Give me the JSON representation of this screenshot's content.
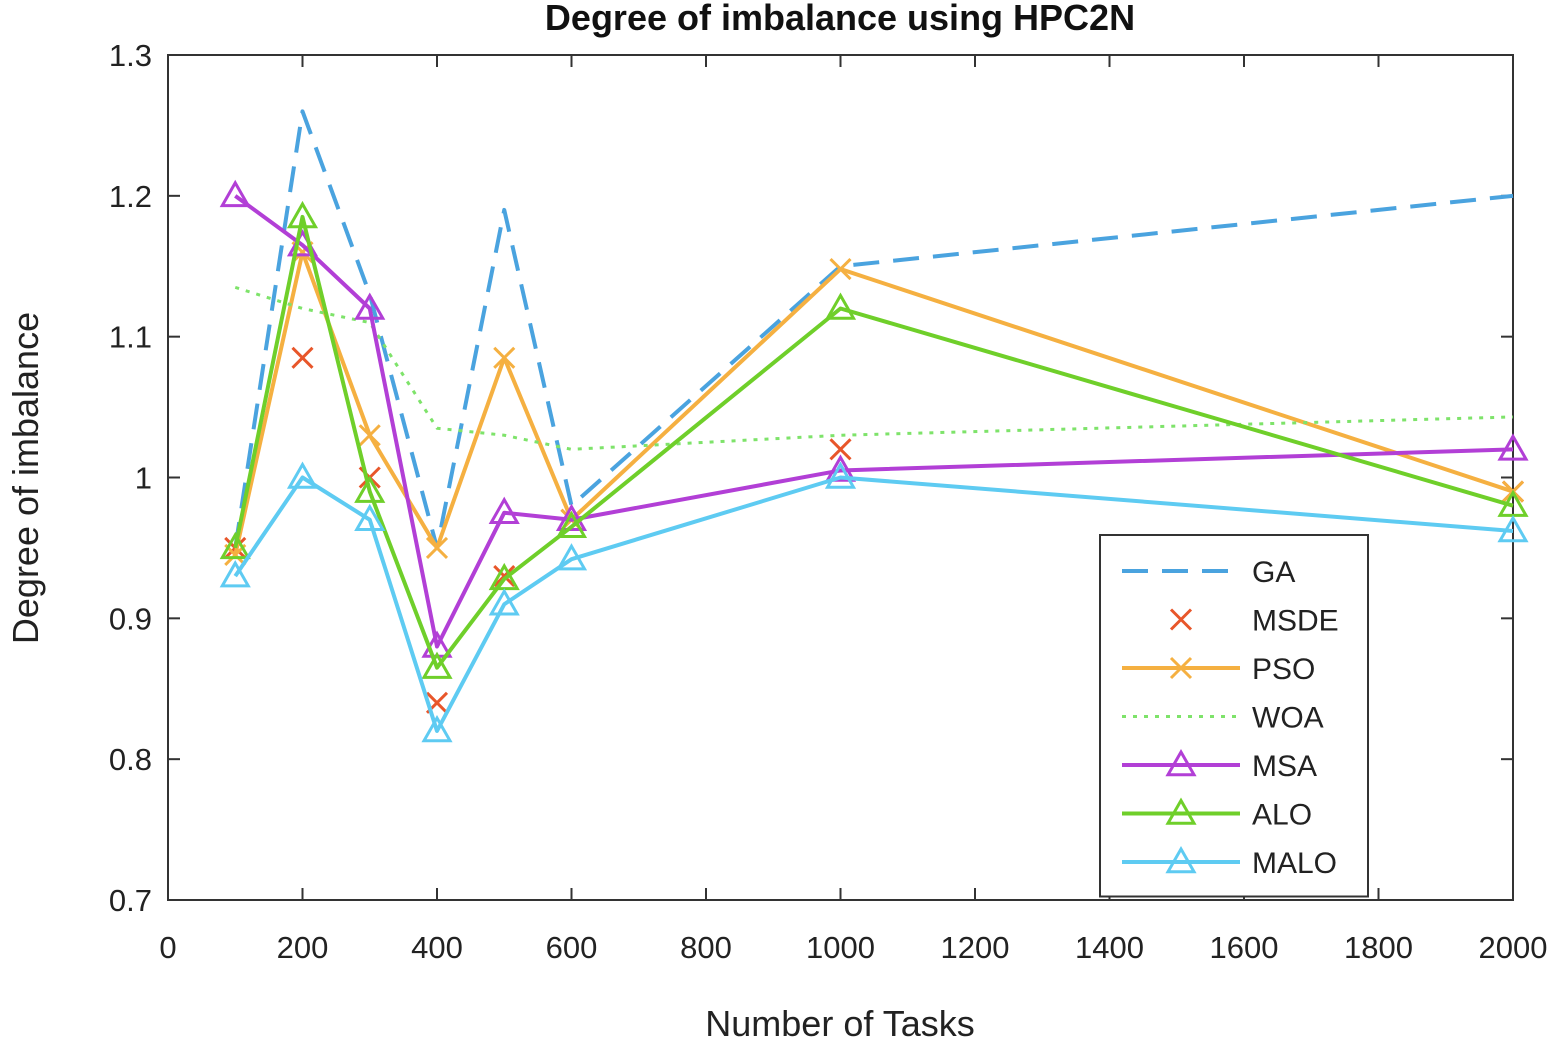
{
  "chart_data": {
    "type": "line",
    "title": "Degree of imbalance using HPC2N",
    "xlabel": "Number of Tasks",
    "ylabel": "Degree of imbalance",
    "xlim": [
      0,
      2000
    ],
    "ylim": [
      0.7,
      1.3
    ],
    "xticks": [
      "0",
      "200",
      "400",
      "600",
      "800",
      "1000",
      "1200",
      "1400",
      "1600",
      "1800",
      "2000"
    ],
    "yticks": [
      "0.7",
      "0.8",
      "0.9",
      "1",
      "1.1",
      "1.2",
      "1.3"
    ],
    "xtick_values": [
      0,
      200,
      400,
      600,
      800,
      1000,
      1200,
      1400,
      1600,
      1800,
      2000
    ],
    "ytick_values": [
      0.7,
      0.8,
      0.9,
      1.0,
      1.1,
      1.2,
      1.3
    ],
    "x": [
      100,
      200,
      300,
      400,
      500,
      600,
      1000,
      2000
    ],
    "grid": false,
    "legend_position": "bottom-right",
    "series": [
      {
        "name": "GA",
        "color": "#4aa3df",
        "style": "dashed",
        "marker": "none",
        "values": [
          0.95,
          1.26,
          1.13,
          0.95,
          1.19,
          0.98,
          1.15,
          1.2
        ]
      },
      {
        "name": "MSDE",
        "color": "#e8562a",
        "style": "none",
        "marker": "x",
        "values": [
          0.95,
          1.085,
          1.0,
          0.84,
          0.93,
          0.97,
          1.02,
          0.99
        ]
      },
      {
        "name": "PSO",
        "color": "#f5b041",
        "style": "solid",
        "marker": "x",
        "values": [
          0.945,
          1.16,
          1.03,
          0.95,
          1.085,
          0.97,
          1.148,
          0.99
        ]
      },
      {
        "name": "WOA",
        "color": "#7ee36a",
        "style": "dotted",
        "marker": "none",
        "values": [
          1.135,
          1.12,
          1.11,
          1.035,
          1.03,
          1.02,
          1.03,
          1.043
        ]
      },
      {
        "name": "MSA",
        "color": "#b23fd6",
        "style": "solid",
        "marker": "triangle",
        "values": [
          1.2,
          1.165,
          1.12,
          0.88,
          0.975,
          0.97,
          1.005,
          1.02
        ]
      },
      {
        "name": "ALO",
        "color": "#6fcf2a",
        "style": "solid",
        "marker": "triangle",
        "values": [
          0.95,
          1.185,
          0.99,
          0.865,
          0.928,
          0.965,
          1.12,
          0.98
        ]
      },
      {
        "name": "MALO",
        "color": "#5ecbf2",
        "style": "solid",
        "marker": "triangle",
        "values": [
          0.93,
          1.0,
          0.97,
          0.82,
          0.91,
          0.942,
          1.0,
          0.962
        ]
      }
    ]
  }
}
